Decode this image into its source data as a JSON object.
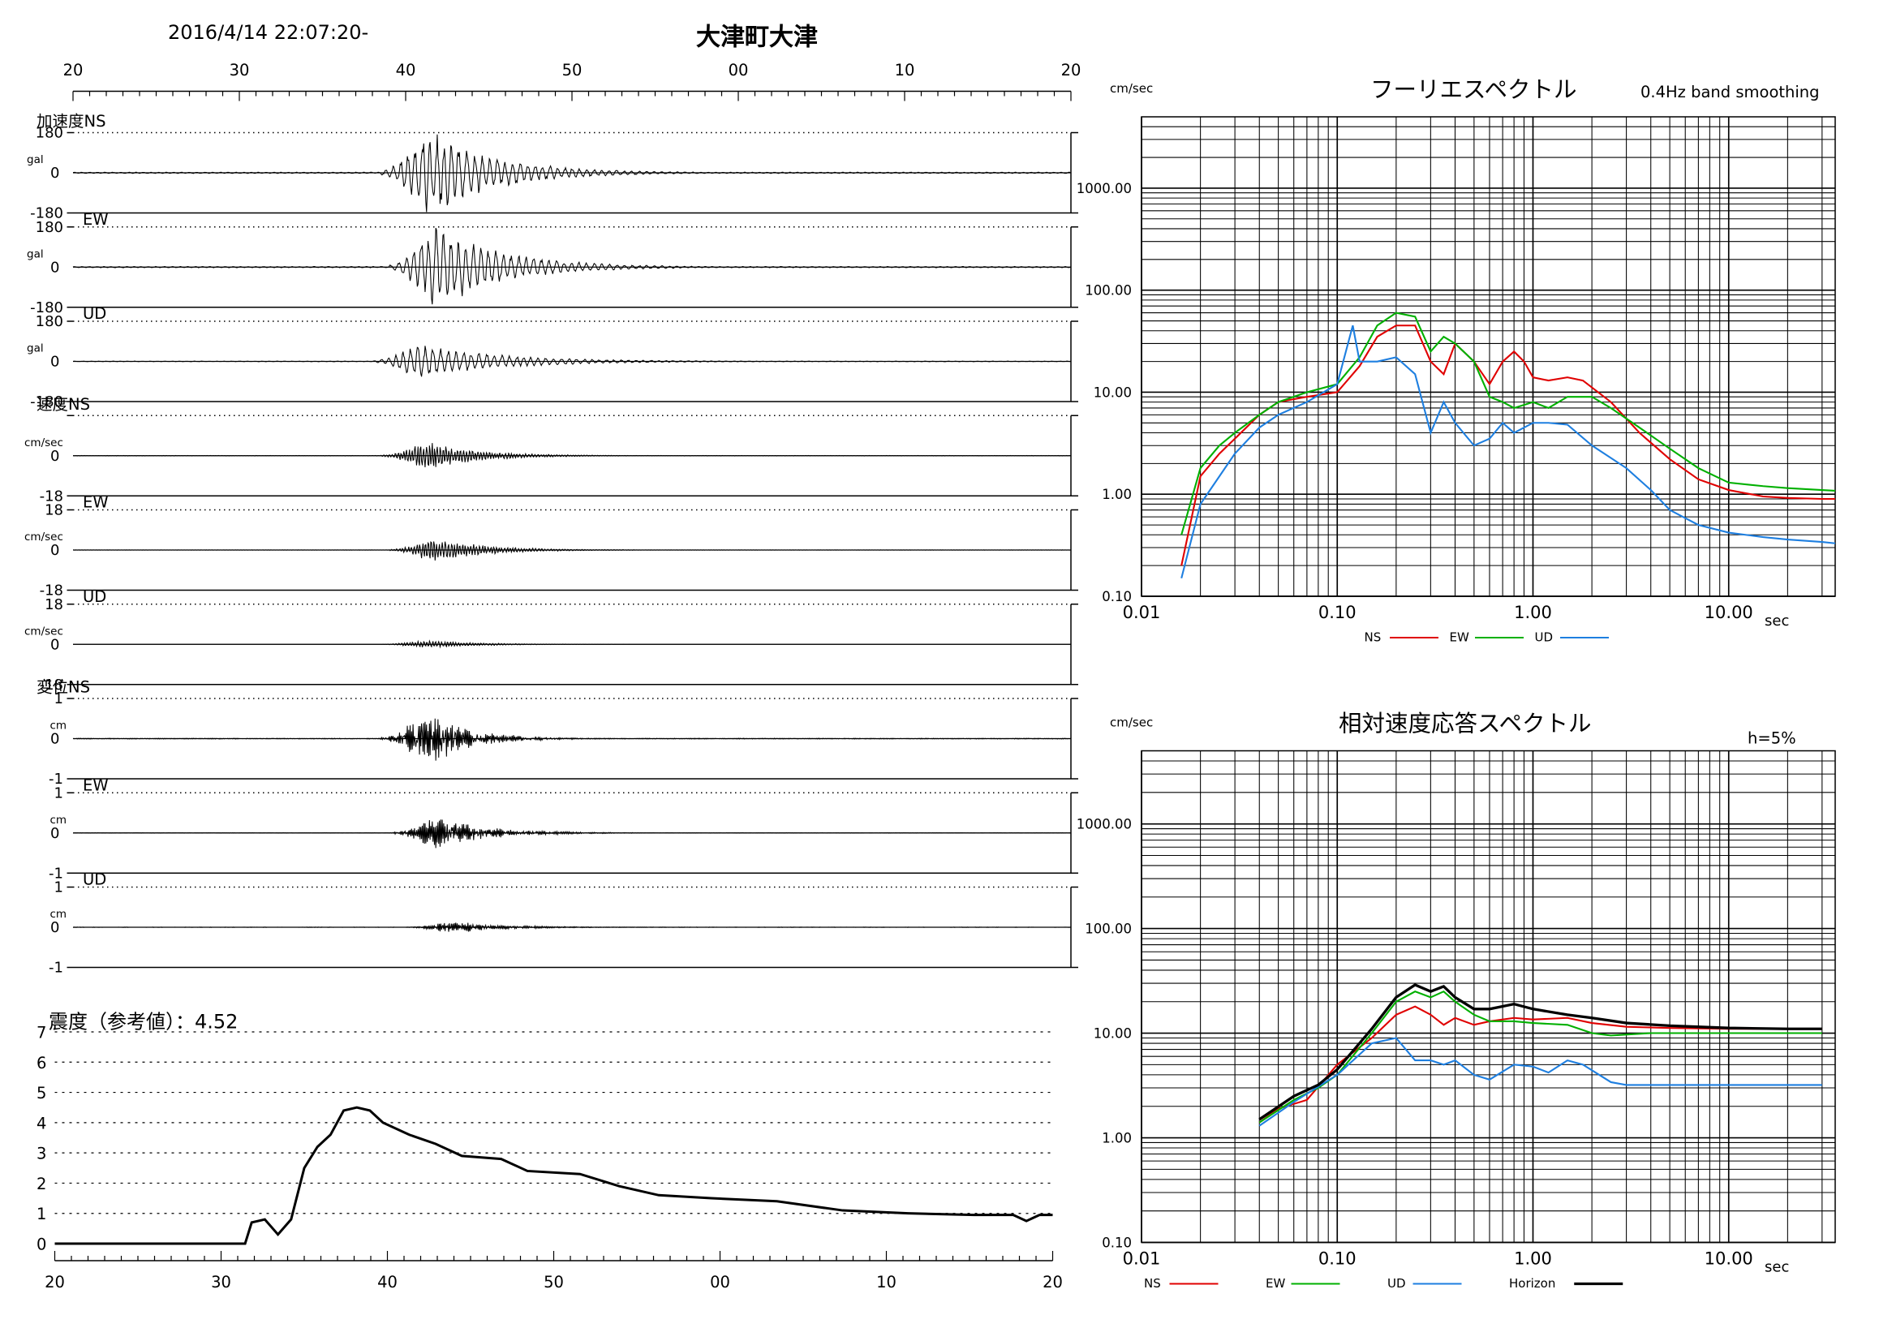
{
  "header": {
    "datetime": "2016/4/14 22:07:20-",
    "station": "大津町大津"
  },
  "waveforms": {
    "time_ticks": [
      "20",
      "30",
      "40",
      "50",
      "00",
      "10",
      "20"
    ],
    "section_labels": {
      "accel": "加速度",
      "vel": "速度",
      "disp": "変位"
    },
    "units": {
      "accel": "gal",
      "vel": "cm/sec",
      "disp": "cm"
    },
    "panels": [
      {
        "group": "accel",
        "component": "NS",
        "top": "180",
        "mid": "0",
        "bottom": "-180",
        "amp": 36,
        "center": 41.5,
        "spread": 4,
        "scale": 1.0,
        "osc": 0.6
      },
      {
        "group": "accel",
        "component": "EW",
        "top": "180",
        "mid": "0",
        "bottom": "-180",
        "amp": 34,
        "center": 42,
        "spread": 4,
        "scale": 1.0,
        "osc": 0.6
      },
      {
        "group": "accel",
        "component": "UD",
        "top": "180",
        "mid": "0",
        "bottom": "-180",
        "amp": 14,
        "center": 41,
        "spread": 5,
        "scale": 1.0,
        "osc": 0.6
      },
      {
        "group": "vel",
        "component": "NS",
        "top": "",
        "mid": "0",
        "bottom": "-18",
        "amp": 12,
        "center": 41.5,
        "spread": 3,
        "scale": 1.0,
        "osc": 1.6
      },
      {
        "group": "vel",
        "component": "EW",
        "top": "18",
        "mid": "0",
        "bottom": "-18",
        "amp": 10,
        "center": 42,
        "spread": 3,
        "scale": 1.0,
        "osc": 1.6
      },
      {
        "group": "vel",
        "component": "UD",
        "top": "18",
        "mid": "0",
        "bottom": "-18",
        "amp": 3,
        "center": 41.5,
        "spread": 3,
        "scale": 1.0,
        "osc": 1.6
      },
      {
        "group": "disp",
        "component": "NS",
        "top": "1",
        "mid": "0",
        "bottom": "-1",
        "amp": 22,
        "center": 41.5,
        "spread": 2.5,
        "scale": 1.0,
        "osc": 3.2
      },
      {
        "group": "disp",
        "component": "EW",
        "top": "1",
        "mid": "0",
        "bottom": "-1",
        "amp": 13,
        "center": 42,
        "spread": 3,
        "scale": 1.0,
        "osc": 3.2
      },
      {
        "group": "disp",
        "component": "UD",
        "top": "1",
        "mid": "0",
        "bottom": "-1",
        "amp": 5,
        "center": 43,
        "spread": 3,
        "scale": 1.0,
        "osc": 3.2
      }
    ]
  },
  "intensity": {
    "label": "震度（参考値）：4.52",
    "y_ticks": [
      "0",
      "1",
      "2",
      "3",
      "4",
      "5",
      "6",
      "7"
    ],
    "x_ticks": [
      "20",
      "30",
      "40",
      "50",
      "00",
      "10",
      "20"
    ],
    "series": [
      [
        0,
        0
      ],
      [
        14.5,
        0
      ],
      [
        15,
        0.7
      ],
      [
        16,
        0.8
      ],
      [
        17,
        0.3
      ],
      [
        18,
        0.8
      ],
      [
        19,
        2.5
      ],
      [
        20,
        3.2
      ],
      [
        21,
        3.6
      ],
      [
        22,
        4.4
      ],
      [
        23,
        4.5
      ],
      [
        24,
        4.4
      ],
      [
        25,
        4.0
      ],
      [
        27,
        3.6
      ],
      [
        29,
        3.3
      ],
      [
        31,
        2.9
      ],
      [
        34,
        2.8
      ],
      [
        36,
        2.4
      ],
      [
        40,
        2.3
      ],
      [
        43,
        1.9
      ],
      [
        46,
        1.6
      ],
      [
        50,
        1.5
      ],
      [
        55,
        1.4
      ],
      [
        60,
        1.1
      ],
      [
        65,
        1.0
      ],
      [
        70,
        0.95
      ],
      [
        73,
        0.95
      ],
      [
        74,
        0.75
      ],
      [
        75,
        0.95
      ],
      [
        76,
        0.95
      ]
    ]
  },
  "chart_data": [
    {
      "type": "line",
      "title": "フーリエスペクトル",
      "subtitle": "0.4Hz band smoothing",
      "ylabel": "cm/sec",
      "xlabel": "sec",
      "xscale": "log",
      "yscale": "log",
      "xlim": [
        0.01,
        35
      ],
      "ylim": [
        0.1,
        5000
      ],
      "x_tick_labels": [
        "0.01",
        "0.10",
        "1.00",
        "10.00"
      ],
      "y_tick_labels": [
        "0.10",
        "1.00",
        "10.00",
        "100.00",
        "1000.00"
      ],
      "legend": [
        "NS",
        "EW",
        "UD"
      ],
      "legend_position": "bottom",
      "series": [
        {
          "name": "NS",
          "color": "#e00000",
          "points": [
            [
              0.016,
              0.2
            ],
            [
              0.02,
              1.5
            ],
            [
              0.025,
              2.5
            ],
            [
              0.03,
              3.5
            ],
            [
              0.04,
              6
            ],
            [
              0.05,
              8
            ],
            [
              0.07,
              9
            ],
            [
              0.1,
              10
            ],
            [
              0.13,
              18
            ],
            [
              0.16,
              35
            ],
            [
              0.2,
              45
            ],
            [
              0.25,
              45
            ],
            [
              0.3,
              20
            ],
            [
              0.35,
              15
            ],
            [
              0.4,
              30
            ],
            [
              0.5,
              20
            ],
            [
              0.6,
              12
            ],
            [
              0.7,
              20
            ],
            [
              0.8,
              25
            ],
            [
              0.9,
              20
            ],
            [
              1.0,
              14
            ],
            [
              1.2,
              13
            ],
            [
              1.5,
              14
            ],
            [
              1.8,
              13
            ],
            [
              2.5,
              8
            ],
            [
              3.5,
              4
            ],
            [
              5,
              2.2
            ],
            [
              7,
              1.4
            ],
            [
              10,
              1.1
            ],
            [
              15,
              0.95
            ],
            [
              20,
              0.92
            ],
            [
              30,
              0.9
            ],
            [
              35,
              0.9
            ]
          ]
        },
        {
          "name": "EW",
          "color": "#00b000",
          "points": [
            [
              0.016,
              0.4
            ],
            [
              0.02,
              1.8
            ],
            [
              0.025,
              3
            ],
            [
              0.03,
              4
            ],
            [
              0.04,
              6
            ],
            [
              0.05,
              8
            ],
            [
              0.07,
              10
            ],
            [
              0.1,
              12
            ],
            [
              0.13,
              22
            ],
            [
              0.16,
              45
            ],
            [
              0.2,
              60
            ],
            [
              0.25,
              55
            ],
            [
              0.3,
              25
            ],
            [
              0.35,
              35
            ],
            [
              0.4,
              30
            ],
            [
              0.5,
              20
            ],
            [
              0.6,
              9
            ],
            [
              0.7,
              8
            ],
            [
              0.8,
              7
            ],
            [
              1.0,
              8
            ],
            [
              1.2,
              7
            ],
            [
              1.5,
              9
            ],
            [
              2,
              9
            ],
            [
              2.5,
              7
            ],
            [
              3.5,
              4.5
            ],
            [
              5,
              2.8
            ],
            [
              7,
              1.8
            ],
            [
              10,
              1.3
            ],
            [
              15,
              1.2
            ],
            [
              20,
              1.15
            ],
            [
              30,
              1.1
            ],
            [
              35,
              1.08
            ]
          ]
        },
        {
          "name": "UD",
          "color": "#1e7fe0",
          "points": [
            [
              0.016,
              0.15
            ],
            [
              0.02,
              0.8
            ],
            [
              0.025,
              1.5
            ],
            [
              0.03,
              2.5
            ],
            [
              0.04,
              4.5
            ],
            [
              0.05,
              6
            ],
            [
              0.07,
              8
            ],
            [
              0.1,
              12
            ],
            [
              0.12,
              45
            ],
            [
              0.13,
              20
            ],
            [
              0.16,
              20
            ],
            [
              0.2,
              22
            ],
            [
              0.25,
              15
            ],
            [
              0.3,
              4
            ],
            [
              0.35,
              8
            ],
            [
              0.4,
              5
            ],
            [
              0.5,
              3
            ],
            [
              0.6,
              3.5
            ],
            [
              0.7,
              5
            ],
            [
              0.8,
              4
            ],
            [
              1.0,
              5
            ],
            [
              1.2,
              5
            ],
            [
              1.5,
              4.8
            ],
            [
              2,
              3
            ],
            [
              3,
              1.8
            ],
            [
              4,
              1.1
            ],
            [
              5,
              0.7
            ],
            [
              7,
              0.5
            ],
            [
              10,
              0.42
            ],
            [
              15,
              0.38
            ],
            [
              20,
              0.36
            ],
            [
              30,
              0.34
            ],
            [
              35,
              0.33
            ]
          ]
        }
      ]
    },
    {
      "type": "line",
      "title": "相対速度応答スペクトル",
      "subtitle": "h=5%",
      "ylabel": "cm/sec",
      "xlabel": "sec",
      "xscale": "log",
      "yscale": "log",
      "xlim": [
        0.01,
        35
      ],
      "ylim": [
        0.1,
        5000
      ],
      "x_tick_labels": [
        "0.01",
        "0.10",
        "1.00",
        "10.00"
      ],
      "y_tick_labels": [
        "0.10",
        "1.00",
        "10.00",
        "100.00",
        "1000.00"
      ],
      "legend": [
        "NS",
        "EW",
        "UD",
        "Horizon"
      ],
      "legend_position": "bottom",
      "series": [
        {
          "name": "NS",
          "color": "#e00000",
          "points": [
            [
              0.04,
              1.4
            ],
            [
              0.05,
              1.9
            ],
            [
              0.07,
              2.3
            ],
            [
              0.1,
              5
            ],
            [
              0.15,
              9
            ],
            [
              0.2,
              15
            ],
            [
              0.25,
              18
            ],
            [
              0.3,
              15
            ],
            [
              0.35,
              12
            ],
            [
              0.4,
              14
            ],
            [
              0.5,
              12
            ],
            [
              0.6,
              13
            ],
            [
              0.8,
              14
            ],
            [
              1,
              13.5
            ],
            [
              1.5,
              14
            ],
            [
              2,
              12.5
            ],
            [
              3,
              11.5
            ],
            [
              5,
              11.2
            ],
            [
              10,
              11
            ],
            [
              20,
              11
            ],
            [
              30,
              11
            ]
          ]
        },
        {
          "name": "EW",
          "color": "#00b000",
          "points": [
            [
              0.04,
              1.4
            ],
            [
              0.06,
              2.3
            ],
            [
              0.08,
              3
            ],
            [
              0.1,
              4
            ],
            [
              0.15,
              10
            ],
            [
              0.2,
              20
            ],
            [
              0.25,
              25
            ],
            [
              0.3,
              22
            ],
            [
              0.35,
              25
            ],
            [
              0.4,
              20
            ],
            [
              0.5,
              15
            ],
            [
              0.6,
              13
            ],
            [
              0.8,
              13
            ],
            [
              1,
              12.5
            ],
            [
              1.5,
              12
            ],
            [
              2,
              10
            ],
            [
              2.5,
              9.5
            ],
            [
              4,
              10
            ],
            [
              10,
              10
            ],
            [
              20,
              10
            ],
            [
              30,
              10
            ]
          ]
        },
        {
          "name": "UD",
          "color": "#1e7fe0",
          "points": [
            [
              0.04,
              1.3
            ],
            [
              0.06,
              2.2
            ],
            [
              0.1,
              4
            ],
            [
              0.15,
              8
            ],
            [
              0.2,
              9
            ],
            [
              0.25,
              5.5
            ],
            [
              0.3,
              5.5
            ],
            [
              0.35,
              5
            ],
            [
              0.4,
              5.5
            ],
            [
              0.5,
              4
            ],
            [
              0.6,
              3.6
            ],
            [
              0.8,
              5
            ],
            [
              1,
              4.8
            ],
            [
              1.2,
              4.2
            ],
            [
              1.5,
              5.5
            ],
            [
              1.8,
              5
            ],
            [
              2.5,
              3.4
            ],
            [
              3,
              3.2
            ],
            [
              5,
              3.2
            ],
            [
              10,
              3.2
            ],
            [
              30,
              3.2
            ]
          ]
        },
        {
          "name": "Horizon",
          "color": "#000000",
          "points": [
            [
              0.04,
              1.5
            ],
            [
              0.06,
              2.5
            ],
            [
              0.08,
              3.2
            ],
            [
              0.1,
              4.5
            ],
            [
              0.15,
              11
            ],
            [
              0.2,
              22
            ],
            [
              0.25,
              29
            ],
            [
              0.3,
              25
            ],
            [
              0.35,
              28
            ],
            [
              0.4,
              22
            ],
            [
              0.5,
              17
            ],
            [
              0.6,
              17
            ],
            [
              0.8,
              19
            ],
            [
              1,
              17
            ],
            [
              1.5,
              15
            ],
            [
              2,
              14
            ],
            [
              3,
              12.5
            ],
            [
              5,
              11.8
            ],
            [
              10,
              11.2
            ],
            [
              20,
              11
            ],
            [
              30,
              11
            ]
          ]
        }
      ]
    }
  ]
}
